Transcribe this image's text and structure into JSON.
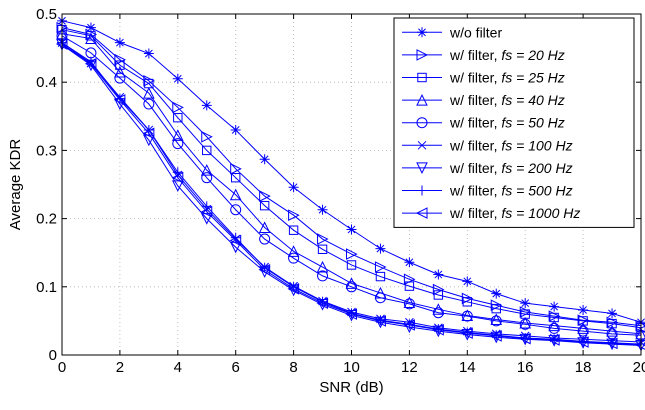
{
  "chart_data": {
    "type": "line",
    "xlabel": "SNR (dB)",
    "ylabel": "Average KDR",
    "xlim": [
      0,
      20
    ],
    "ylim": [
      0,
      0.5
    ],
    "xticks": [
      0,
      2,
      4,
      6,
      8,
      10,
      12,
      14,
      16,
      18,
      20
    ],
    "yticks": [
      0,
      0.1,
      0.2,
      0.3,
      0.4,
      0.5
    ],
    "xtick_labels": [
      "0",
      "2",
      "4",
      "6",
      "8",
      "10",
      "12",
      "14",
      "16",
      "18",
      "20"
    ],
    "ytick_labels": [
      "0",
      "0.1",
      "0.2",
      "0.3",
      "0.4",
      "0.5"
    ],
    "grid": true,
    "legend_position": "top-right",
    "line_color": "#0000ff",
    "x": [
      0,
      1,
      2,
      3,
      4,
      5,
      6,
      7,
      8,
      9,
      10,
      11,
      12,
      13,
      14,
      15,
      16,
      17,
      18,
      19,
      20
    ],
    "series": [
      {
        "name": "w/o filter",
        "name_prefix": "w/o filter",
        "name_italic": "",
        "marker": "asterisk",
        "values": [
          0.49,
          0.48,
          0.458,
          0.442,
          0.405,
          0.366,
          0.33,
          0.287,
          0.246,
          0.213,
          0.184,
          0.156,
          0.136,
          0.118,
          0.108,
          0.09,
          0.076,
          0.071,
          0.066,
          0.061,
          0.048
        ]
      },
      {
        "name": "w/ filter, fs = 20 Hz",
        "name_prefix": "w/ filter, ",
        "name_italic": "fs = 20 Hz",
        "marker": "triangle-right",
        "values": [
          0.48,
          0.47,
          0.433,
          0.402,
          0.363,
          0.32,
          0.273,
          0.233,
          0.205,
          0.17,
          0.148,
          0.129,
          0.111,
          0.096,
          0.083,
          0.073,
          0.063,
          0.057,
          0.051,
          0.048,
          0.043
        ]
      },
      {
        "name": "w/ filter, fs = 25 Hz",
        "name_prefix": "w/ filter, ",
        "name_italic": "fs = 25 Hz",
        "marker": "square",
        "values": [
          0.477,
          0.468,
          0.425,
          0.398,
          0.348,
          0.3,
          0.26,
          0.219,
          0.183,
          0.155,
          0.132,
          0.115,
          0.101,
          0.088,
          0.078,
          0.068,
          0.06,
          0.055,
          0.05,
          0.046,
          0.04
        ]
      },
      {
        "name": "w/ filter, fs = 40 Hz",
        "name_prefix": "w/ filter, ",
        "name_italic": "fs = 40 Hz",
        "marker": "triangle-up",
        "values": [
          0.471,
          0.464,
          0.415,
          0.384,
          0.322,
          0.271,
          0.235,
          0.187,
          0.152,
          0.129,
          0.105,
          0.091,
          0.077,
          0.067,
          0.058,
          0.052,
          0.047,
          0.043,
          0.039,
          0.035,
          0.031
        ]
      },
      {
        "name": "w/ filter, fs = 50 Hz",
        "name_prefix": "w/ filter, ",
        "name_italic": "fs = 50 Hz",
        "marker": "circle",
        "values": [
          0.468,
          0.443,
          0.406,
          0.368,
          0.31,
          0.26,
          0.213,
          0.17,
          0.142,
          0.116,
          0.1,
          0.084,
          0.075,
          0.062,
          0.057,
          0.05,
          0.045,
          0.039,
          0.035,
          0.031,
          0.029
        ]
      },
      {
        "name": "w/ filter, fs = 100 Hz",
        "name_prefix": "w/ filter, ",
        "name_italic": "fs = 100 Hz",
        "marker": "cross",
        "values": [
          0.458,
          0.428,
          0.378,
          0.33,
          0.264,
          0.214,
          0.17,
          0.129,
          0.101,
          0.079,
          0.063,
          0.053,
          0.048,
          0.04,
          0.035,
          0.031,
          0.028,
          0.025,
          0.023,
          0.021,
          0.019
        ]
      },
      {
        "name": "w/ filter, fs = 200 Hz",
        "name_prefix": "w/ filter, ",
        "name_italic": "fs = 200 Hz",
        "marker": "triangle-down",
        "values": [
          0.455,
          0.425,
          0.368,
          0.315,
          0.248,
          0.2,
          0.158,
          0.122,
          0.095,
          0.074,
          0.058,
          0.048,
          0.041,
          0.035,
          0.03,
          0.026,
          0.023,
          0.021,
          0.018,
          0.016,
          0.014
        ]
      },
      {
        "name": "w/ filter, fs = 500 Hz",
        "name_prefix": "w/ filter, ",
        "name_italic": "fs = 500 Hz",
        "marker": "plus",
        "values": [
          0.458,
          0.43,
          0.376,
          0.33,
          0.268,
          0.218,
          0.172,
          0.128,
          0.1,
          0.078,
          0.061,
          0.051,
          0.045,
          0.038,
          0.033,
          0.029,
          0.025,
          0.023,
          0.02,
          0.018,
          0.016
        ]
      },
      {
        "name": "w/ filter, fs = 1000 Hz",
        "name_prefix": "w/ filter, ",
        "name_italic": "fs = 1000 Hz",
        "marker": "triangle-left",
        "values": [
          0.456,
          0.427,
          0.374,
          0.325,
          0.26,
          0.21,
          0.168,
          0.125,
          0.097,
          0.076,
          0.06,
          0.05,
          0.044,
          0.037,
          0.032,
          0.028,
          0.024,
          0.022,
          0.019,
          0.017,
          0.015
        ]
      }
    ]
  }
}
